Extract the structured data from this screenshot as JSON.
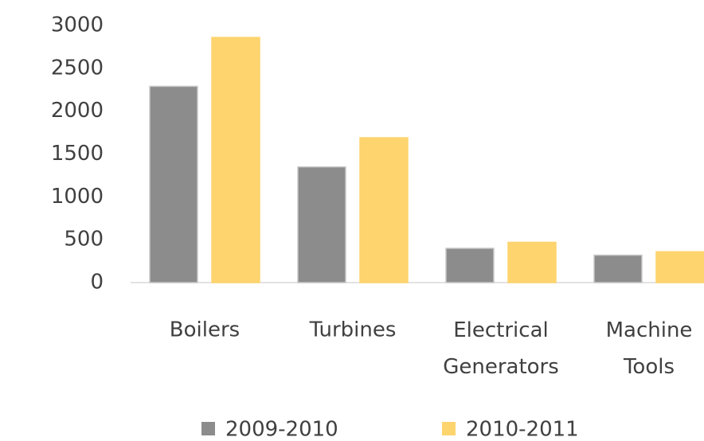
{
  "chart_data": {
    "type": "bar",
    "categories": [
      "Boilers",
      "Turbines",
      "Electrical Generators",
      "Machine Tools"
    ],
    "series": [
      {
        "name": "2009-2010",
        "color": "#8c8c8c",
        "values": [
          2290,
          1350,
          400,
          320
        ]
      },
      {
        "name": "2010-2011",
        "color": "#fdd46e",
        "values": [
          2860,
          1690,
          470,
          360
        ]
      }
    ],
    "ylim": [
      0,
      3000
    ],
    "yticks": [
      0,
      500,
      1000,
      1500,
      2000,
      2500,
      3000
    ],
    "grid": false
  }
}
